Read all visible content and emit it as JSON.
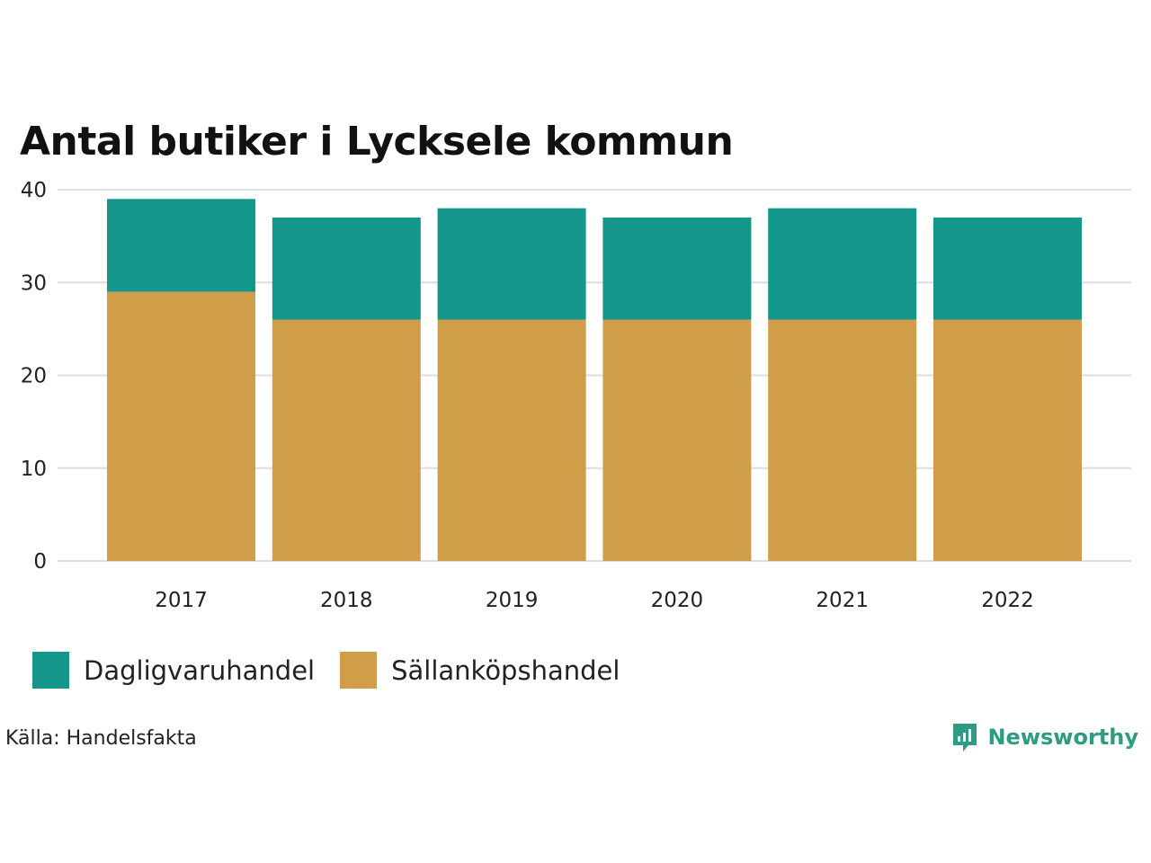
{
  "chart_data": {
    "type": "bar",
    "stacked": true,
    "title": "Antal butiker i Lycksele kommun",
    "categories": [
      "2017",
      "2018",
      "2019",
      "2020",
      "2021",
      "2022"
    ],
    "series": [
      {
        "name": "Sällanköpshandel",
        "color": "#d09e48",
        "values": [
          29,
          26,
          26,
          26,
          26,
          26
        ]
      },
      {
        "name": "Dagligvaruhandel",
        "color": "#14968a",
        "values": [
          10,
          11,
          12,
          11,
          12,
          11
        ]
      }
    ],
    "yticks": [
      "0",
      "10",
      "20",
      "30",
      "40"
    ],
    "ylim": [
      0,
      40
    ],
    "xlabel": "",
    "ylabel": "",
    "grid": true,
    "legend": [
      {
        "label": "Dagligvaruhandel",
        "color": "#14968a"
      },
      {
        "label": "Sällanköpshandel",
        "color": "#d09e48"
      }
    ],
    "legend_position": "bottom-left"
  },
  "source": "Källa: Handelsfakta",
  "brand": {
    "name": "Newsworthy",
    "icon": "newsworthy-logo-icon",
    "color": "#2f9b83"
  }
}
